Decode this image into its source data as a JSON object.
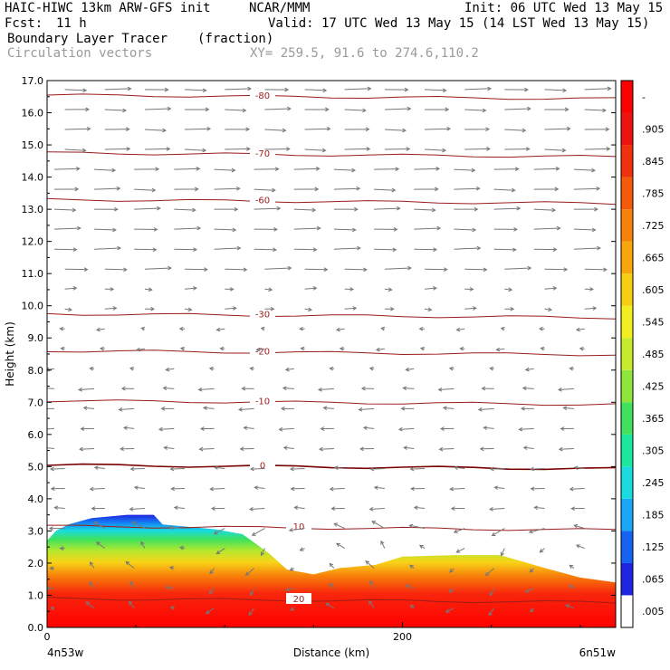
{
  "header": {
    "title": "HAIC-HIWC 13km ARW-GFS init",
    "source": "NCAR/MMM",
    "init": "Init: 06 UTC Wed 13 May 15",
    "fcst_label": "Fcst:",
    "fcst_value": "11 h",
    "valid": "Valid: 17 UTC Wed 13 May 15 (14 LST Wed 13 May 15)",
    "field": "Boundary Layer Tracer",
    "field_units": "(fraction)",
    "overlay": "Circulation vectors",
    "xy": "XY= 259.5, 91.6 to 274.6,110.2"
  },
  "chart_data": {
    "type": "cross-section",
    "xlabel": "Distance (km)",
    "ylabel": "Height (km)",
    "xlim": [
      0,
      320
    ],
    "ylim": [
      0,
      17
    ],
    "x_ticks": [
      {
        "v": 0,
        "label": "0"
      },
      {
        "v": 200,
        "label": "200"
      }
    ],
    "x_end_labels": {
      "left": "4n53w",
      "right": "6n51w"
    },
    "y_ticks": [
      "0.0",
      "1.0",
      "2.0",
      "3.0",
      "4.0",
      "5.0",
      "6.0",
      "7.0",
      "8.0",
      "9.0",
      "10.0",
      "11.0",
      "12.0",
      "13.0",
      "14.0",
      "15.0",
      "16.0",
      "17.0"
    ],
    "colorbar": {
      "labels": [
        ".005",
        ".065",
        ".125",
        ".185",
        ".245",
        ".305",
        ".365",
        ".425",
        ".485",
        ".545",
        ".605",
        ".665",
        ".725",
        ".785",
        ".845",
        ".905",
        "-"
      ],
      "colors": [
        "#ffffff",
        "#1f24e0",
        "#1563f2",
        "#1aa6f7",
        "#19dbe0",
        "#1de8a0",
        "#3fe25a",
        "#8ee63a",
        "#c8ea2c",
        "#f2ee20",
        "#f7ce12",
        "#f8a60c",
        "#f7820a",
        "#f45a0a",
        "#f0320c",
        "#ee140e",
        "#ff0000"
      ]
    },
    "tracer_top_km": [
      {
        "x": 0,
        "z": 2.7
      },
      {
        "x": 5,
        "z": 3.0
      },
      {
        "x": 12,
        "z": 3.2
      },
      {
        "x": 25,
        "z": 3.4
      },
      {
        "x": 45,
        "z": 3.5
      },
      {
        "x": 60,
        "z": 3.5
      },
      {
        "x": 65,
        "z": 3.2
      },
      {
        "x": 95,
        "z": 3.05
      },
      {
        "x": 110,
        "z": 2.9
      },
      {
        "x": 125,
        "z": 2.3
      },
      {
        "x": 135,
        "z": 1.8
      },
      {
        "x": 150,
        "z": 1.65
      },
      {
        "x": 165,
        "z": 1.85
      },
      {
        "x": 185,
        "z": 1.95
      },
      {
        "x": 200,
        "z": 2.2
      },
      {
        "x": 230,
        "z": 2.25
      },
      {
        "x": 255,
        "z": 2.25
      },
      {
        "x": 280,
        "z": 1.85
      },
      {
        "x": 300,
        "z": 1.55
      },
      {
        "x": 320,
        "z": 1.4
      }
    ],
    "isotherms_C": [
      {
        "value": -80,
        "label": "-80",
        "z": 16.55
      },
      {
        "value": -70,
        "label": "-70",
        "z": 14.75
      },
      {
        "value": -60,
        "label": "-60",
        "z": 13.3
      },
      {
        "value": -30,
        "label": "-30",
        "z": 9.75
      },
      {
        "value": -20,
        "label": "-20",
        "z": 8.6
      },
      {
        "value": -10,
        "label": "-10",
        "z": 7.05
      },
      {
        "value": 0,
        "label": "0",
        "z": 5.05
      },
      {
        "value": 10,
        "label": "10",
        "z": 3.15
      },
      {
        "value": 20,
        "label": "20",
        "z": 0.9
      }
    ]
  }
}
